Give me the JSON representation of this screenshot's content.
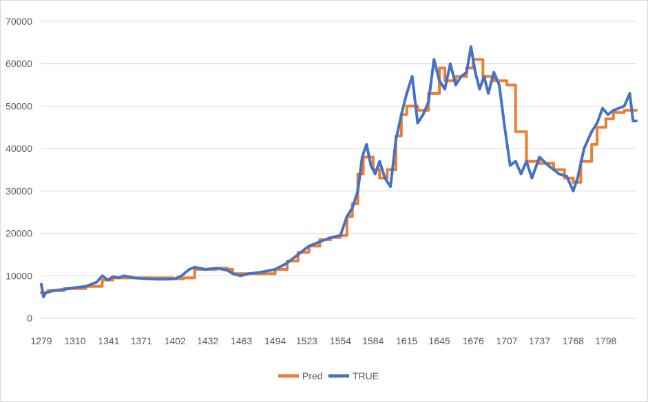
{
  "chart_data": {
    "type": "line",
    "title": "",
    "xlabel": "",
    "ylabel": "",
    "ylim": [
      0,
      70000
    ],
    "x_range": [
      1279,
      1826
    ],
    "y_ticks": [
      0,
      10000,
      20000,
      30000,
      40000,
      50000,
      60000,
      70000
    ],
    "x_ticks": [
      1279,
      1310,
      1341,
      1371,
      1402,
      1432,
      1463,
      1494,
      1523,
      1554,
      1584,
      1615,
      1645,
      1676,
      1707,
      1737,
      1768,
      1798
    ],
    "grid": "horizontal",
    "legend_position": "bottom-center",
    "series": [
      {
        "name": "Pred",
        "color": "#ED7D31",
        "x": [
          1279,
          1285,
          1300,
          1320,
          1335,
          1345,
          1360,
          1380,
          1400,
          1410,
          1420,
          1440,
          1450,
          1455,
          1470,
          1494,
          1505,
          1515,
          1525,
          1535,
          1545,
          1554,
          1560,
          1565,
          1570,
          1575,
          1584,
          1590,
          1597,
          1605,
          1610,
          1615,
          1625,
          1635,
          1645,
          1650,
          1660,
          1670,
          1676,
          1685,
          1695,
          1707,
          1715,
          1725,
          1737,
          1750,
          1760,
          1768,
          1775,
          1785,
          1790,
          1798,
          1805,
          1815,
          1826
        ],
        "y": [
          6000,
          6500,
          7000,
          7500,
          9000,
          9500,
          9500,
          9500,
          9300,
          9500,
          11500,
          11800,
          11500,
          10500,
          10500,
          11500,
          13500,
          15500,
          17000,
          18500,
          19000,
          19500,
          24000,
          27000,
          34000,
          38000,
          35000,
          33000,
          35000,
          43000,
          48000,
          50000,
          49000,
          53000,
          59000,
          56000,
          57000,
          59000,
          61000,
          57000,
          56000,
          55000,
          44000,
          37000,
          36500,
          35000,
          33000,
          32000,
          37000,
          41000,
          45000,
          47000,
          48500,
          49000,
          49000
        ]
      },
      {
        "name": "TRUE",
        "color": "#4472C4",
        "x": [
          1279,
          1281,
          1283,
          1290,
          1300,
          1310,
          1320,
          1330,
          1335,
          1340,
          1345,
          1350,
          1355,
          1365,
          1375,
          1385,
          1395,
          1402,
          1408,
          1415,
          1420,
          1430,
          1440,
          1450,
          1455,
          1462,
          1470,
          1480,
          1494,
          1505,
          1515,
          1525,
          1535,
          1545,
          1554,
          1560,
          1565,
          1570,
          1574,
          1578,
          1582,
          1586,
          1590,
          1595,
          1600,
          1605,
          1610,
          1615,
          1620,
          1625,
          1630,
          1635,
          1640,
          1645,
          1650,
          1655,
          1660,
          1665,
          1670,
          1674,
          1678,
          1682,
          1686,
          1690,
          1695,
          1700,
          1705,
          1710,
          1715,
          1720,
          1725,
          1730,
          1737,
          1745,
          1755,
          1762,
          1768,
          1772,
          1778,
          1785,
          1790,
          1795,
          1800,
          1805,
          1810,
          1815,
          1820,
          1823,
          1826
        ],
        "y": [
          8000,
          5000,
          6000,
          6500,
          6800,
          7200,
          7500,
          8500,
          10000,
          9000,
          9800,
          9500,
          10000,
          9500,
          9300,
          9200,
          9200,
          9300,
          10000,
          11500,
          12000,
          11500,
          11800,
          11300,
          10500,
          10000,
          10500,
          10800,
          11500,
          13000,
          15000,
          17000,
          18000,
          19000,
          19500,
          24000,
          26000,
          30000,
          38000,
          41000,
          36000,
          34000,
          37000,
          33000,
          31000,
          42000,
          48000,
          53000,
          57000,
          46000,
          48000,
          51000,
          61000,
          56000,
          54000,
          60000,
          55000,
          57000,
          58000,
          64000,
          58000,
          54000,
          57000,
          53000,
          58000,
          55000,
          45000,
          36000,
          37000,
          34000,
          37000,
          33000,
          38000,
          36000,
          34000,
          33500,
          30000,
          33000,
          40000,
          44000,
          46000,
          49500,
          48000,
          49000,
          49500,
          50000,
          53000,
          46500,
          46500
        ]
      }
    ]
  },
  "legend": {
    "items": [
      {
        "label": "Pred",
        "color": "#ED7D31"
      },
      {
        "label": "TRUE",
        "color": "#4472C4"
      }
    ]
  }
}
